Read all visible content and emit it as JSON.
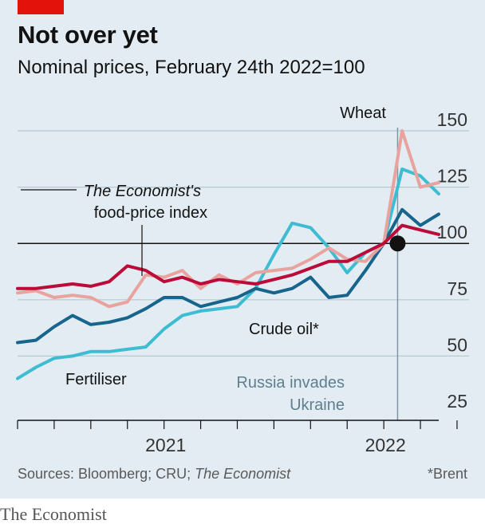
{
  "header": {
    "title": "Not over yet",
    "subtitle": "Nominal prices, February 24th 2022=100"
  },
  "footer": {
    "sources_prefix": "Sources: Bloomberg; CRU; ",
    "sources_italic": "The Economist",
    "note": "*Brent"
  },
  "brand": "The Economist",
  "colors": {
    "background": "#e2ecf2",
    "wheat": "#e9a39f",
    "food_index": "#bc0a39",
    "crude_oil": "#17648d",
    "fertiliser": "#3ebcd2",
    "brand_red": "#e3120b"
  },
  "annotations": {
    "event_line1": "Russia invades",
    "event_line2": "Ukraine",
    "food_label_italic": "The Economist's",
    "food_label_line2": "food-price index"
  },
  "chart_data": {
    "type": "line",
    "title": "Not over yet",
    "subtitle": "Nominal prices, February 24th 2022=100",
    "x_range": [
      "2020-06",
      "2022-05"
    ],
    "x_tick_labels": [
      "2021",
      "2022"
    ],
    "ylim": [
      25,
      150
    ],
    "y_ticks": [
      25,
      50,
      75,
      100,
      125,
      150
    ],
    "baseline": 100,
    "event": {
      "date": "2022-02-24",
      "label": "Russia invades Ukraine",
      "value": 100
    },
    "grid": true,
    "series": [
      {
        "name": "Wheat",
        "color": "#e9a39f",
        "points": [
          [
            "2020-06",
            78
          ],
          [
            "2020-07",
            79
          ],
          [
            "2020-08",
            76
          ],
          [
            "2020-09",
            77
          ],
          [
            "2020-10",
            76
          ],
          [
            "2020-11",
            72
          ],
          [
            "2020-12",
            74
          ],
          [
            "2021-01",
            86
          ],
          [
            "2021-02",
            85
          ],
          [
            "2021-03",
            88
          ],
          [
            "2021-04",
            80
          ],
          [
            "2021-05",
            86
          ],
          [
            "2021-06",
            82
          ],
          [
            "2021-07",
            87
          ],
          [
            "2021-08",
            88
          ],
          [
            "2021-09",
            89
          ],
          [
            "2021-10",
            93
          ],
          [
            "2021-11",
            98
          ],
          [
            "2021-12",
            93
          ],
          [
            "2022-01",
            92
          ],
          [
            "2022-02",
            100
          ],
          [
            "2022-03",
            150
          ],
          [
            "2022-04",
            125
          ],
          [
            "2022-05",
            127
          ]
        ]
      },
      {
        "name": "The Economist's food-price index",
        "color": "#bc0a39",
        "points": [
          [
            "2020-06",
            80
          ],
          [
            "2020-07",
            80
          ],
          [
            "2020-08",
            81
          ],
          [
            "2020-09",
            82
          ],
          [
            "2020-10",
            81
          ],
          [
            "2020-11",
            83
          ],
          [
            "2020-12",
            90
          ],
          [
            "2021-01",
            88
          ],
          [
            "2021-02",
            83
          ],
          [
            "2021-03",
            85
          ],
          [
            "2021-04",
            82
          ],
          [
            "2021-05",
            84
          ],
          [
            "2021-06",
            83
          ],
          [
            "2021-07",
            82
          ],
          [
            "2021-08",
            84
          ],
          [
            "2021-09",
            86
          ],
          [
            "2021-10",
            89
          ],
          [
            "2021-11",
            92
          ],
          [
            "2021-12",
            92
          ],
          [
            "2022-01",
            96
          ],
          [
            "2022-02",
            100
          ],
          [
            "2022-03",
            108
          ],
          [
            "2022-04",
            106
          ],
          [
            "2022-05",
            104
          ]
        ]
      },
      {
        "name": "Crude oil*",
        "color": "#17648d",
        "points": [
          [
            "2020-06",
            56
          ],
          [
            "2020-07",
            57
          ],
          [
            "2020-08",
            63
          ],
          [
            "2020-09",
            68
          ],
          [
            "2020-10",
            64
          ],
          [
            "2020-11",
            65
          ],
          [
            "2020-12",
            67
          ],
          [
            "2021-01",
            71
          ],
          [
            "2021-02",
            76
          ],
          [
            "2021-03",
            76
          ],
          [
            "2021-04",
            72
          ],
          [
            "2021-05",
            74
          ],
          [
            "2021-06",
            76
          ],
          [
            "2021-07",
            80
          ],
          [
            "2021-08",
            78
          ],
          [
            "2021-09",
            80
          ],
          [
            "2021-10",
            85
          ],
          [
            "2021-11",
            76
          ],
          [
            "2021-12",
            77
          ],
          [
            "2022-01",
            88
          ],
          [
            "2022-02",
            100
          ],
          [
            "2022-03",
            115
          ],
          [
            "2022-04",
            108
          ],
          [
            "2022-05",
            113
          ]
        ]
      },
      {
        "name": "Fertiliser",
        "color": "#3ebcd2",
        "points": [
          [
            "2020-06",
            40
          ],
          [
            "2020-07",
            45
          ],
          [
            "2020-08",
            49
          ],
          [
            "2020-09",
            50
          ],
          [
            "2020-10",
            52
          ],
          [
            "2020-11",
            52
          ],
          [
            "2020-12",
            53
          ],
          [
            "2021-01",
            54
          ],
          [
            "2021-02",
            62
          ],
          [
            "2021-03",
            68
          ],
          [
            "2021-04",
            70
          ],
          [
            "2021-05",
            71
          ],
          [
            "2021-06",
            72
          ],
          [
            "2021-07",
            80
          ],
          [
            "2021-08",
            95
          ],
          [
            "2021-09",
            109
          ],
          [
            "2021-10",
            107
          ],
          [
            "2021-11",
            98
          ],
          [
            "2021-12",
            87
          ],
          [
            "2022-01",
            96
          ],
          [
            "2022-02",
            100
          ],
          [
            "2022-03",
            133
          ],
          [
            "2022-04",
            130
          ],
          [
            "2022-05",
            122
          ]
        ]
      }
    ]
  }
}
